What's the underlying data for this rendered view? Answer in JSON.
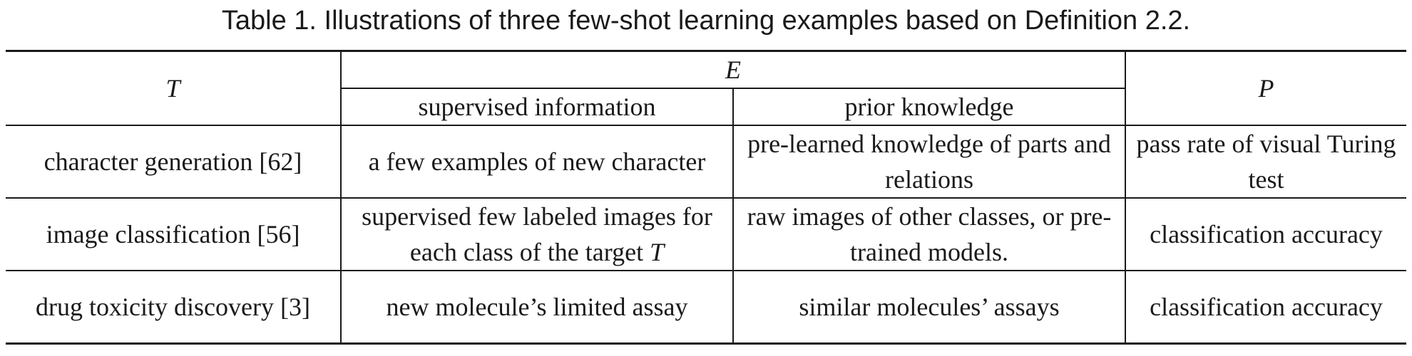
{
  "caption": "Table 1.  Illustrations of three few-shot learning examples based on Definition 2.2.",
  "header": {
    "T": "T",
    "E": "E",
    "P": "P",
    "supervised": "supervised information",
    "prior": "prior knowledge"
  },
  "rows": [
    {
      "task": "character generation [62]",
      "supervised": "a few examples of new character",
      "prior": "pre-learned knowledge of parts and relations",
      "performance": "pass rate of visual Turing test"
    },
    {
      "task": "image classification [56]",
      "supervised_prefix": "supervised few labeled images for each class of the target ",
      "supervised_math": "T",
      "prior": "raw images of other classes, or pre-trained models.",
      "performance": "classification accuracy"
    },
    {
      "task": "drug toxicity discovery [3]",
      "supervised": "new molecule’s limited assay",
      "prior": "similar molecules’ assays",
      "performance": "classification accuracy"
    }
  ]
}
